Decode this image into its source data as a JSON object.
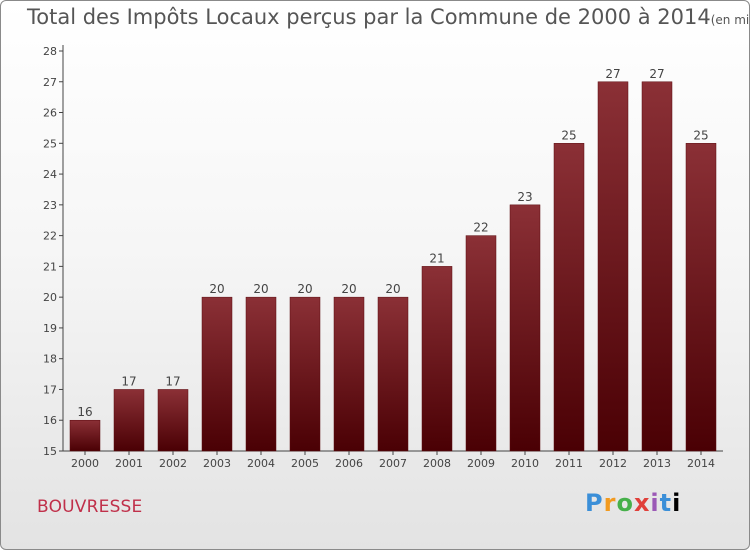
{
  "title": "Total des Impôts Locaux perçus par la Commune de 2000 à 2014",
  "title_unit": "(en milliers d'€)",
  "commune": "BOUVRESSE",
  "logo_letters": [
    "P",
    "r",
    "o",
    "x",
    "i",
    "t",
    "i"
  ],
  "colors": {
    "bar_top": "#8b3036",
    "bar_bottom": "#4a0004",
    "commune": "#c0304a"
  },
  "chart_data": {
    "type": "bar",
    "categories": [
      "2000",
      "2001",
      "2002",
      "2003",
      "2004",
      "2005",
      "2006",
      "2007",
      "2008",
      "2009",
      "2010",
      "2011",
      "2012",
      "2013",
      "2014"
    ],
    "values": [
      16,
      17,
      17,
      20,
      20,
      20,
      20,
      20,
      21,
      22,
      23,
      25,
      27,
      27,
      25
    ],
    "data_labels": [
      "16",
      "17",
      "17",
      "20",
      "20",
      "20",
      "20",
      "20",
      "21",
      "22",
      "23",
      "25",
      "27",
      "27",
      "25"
    ],
    "ylim": [
      15,
      28
    ],
    "yticks": [
      "15",
      "16",
      "17",
      "18",
      "19",
      "20",
      "21",
      "22",
      "23",
      "24",
      "25",
      "26",
      "27",
      "28"
    ],
    "grid": false,
    "legend": "none"
  }
}
